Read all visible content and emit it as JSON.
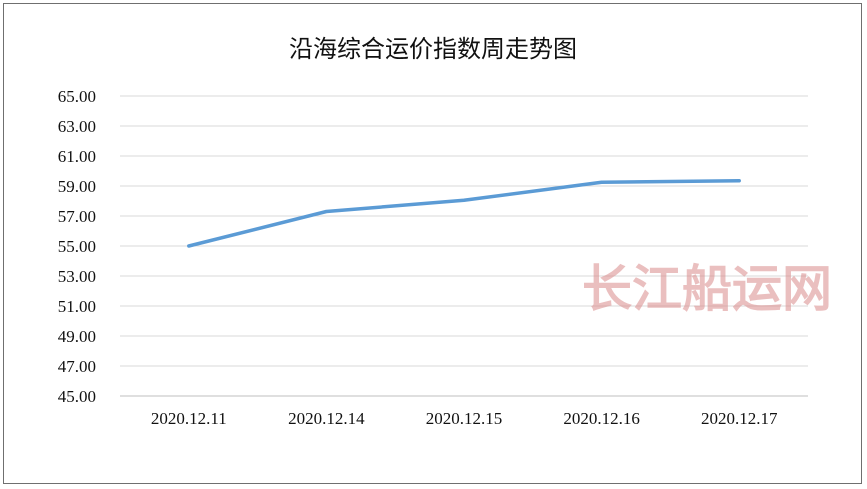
{
  "chart_data": {
    "type": "line",
    "title": "沿海综合运价指数周走势图",
    "categories": [
      "2020.12.11",
      "2020.12.14",
      "2020.12.15",
      "2020.12.16",
      "2020.12.17"
    ],
    "series": [
      {
        "values": [
          55.0,
          57.3,
          58.05,
          59.25,
          59.35
        ],
        "color": "#5b9bd5"
      }
    ],
    "ylim": [
      45,
      65
    ],
    "yticks": [
      "65.00",
      "63.00",
      "61.00",
      "59.00",
      "57.00",
      "55.00",
      "53.00",
      "51.00",
      "49.00",
      "47.00",
      "45.00"
    ],
    "grid": true,
    "legend": "none"
  },
  "watermark": "长江船运网"
}
